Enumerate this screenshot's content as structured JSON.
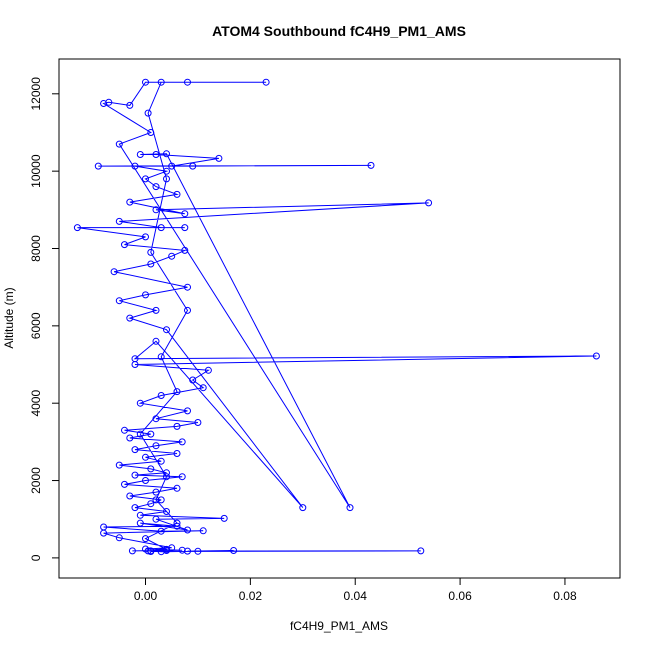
{
  "chart_data": {
    "type": "scatter",
    "title": "ATOM4 Southbound fC4H9_PM1_AMS",
    "xlabel": "fC4H9_PM1_AMS",
    "ylabel": "Altitude (m)",
    "xlim": [
      -0.0165,
      0.0905
    ],
    "ylim": [
      -520,
      12900
    ],
    "x_ticks": [
      0.0,
      0.02,
      0.04,
      0.06,
      0.08
    ],
    "x_tick_labels": [
      "0.00",
      "0.02",
      "0.04",
      "0.06",
      "0.08"
    ],
    "y_ticks": [
      0,
      2000,
      4000,
      6000,
      8000,
      10000,
      12000
    ],
    "y_tick_labels": [
      "0",
      "2000",
      "4000",
      "6000",
      "8000",
      "10000",
      "12000"
    ],
    "series_color": "#0000ff",
    "connected": true,
    "points": [
      [
        0.0005,
        180
      ],
      [
        0.003,
        160
      ],
      [
        0.01,
        170
      ],
      [
        0.0168,
        190
      ],
      [
        0.008,
        175
      ],
      [
        0.0525,
        180
      ],
      [
        0.001,
        165
      ],
      [
        0.004,
        190
      ],
      [
        -0.0025,
        180
      ],
      [
        0.007,
        200
      ],
      [
        0.0,
        230
      ],
      [
        0.005,
        260
      ],
      [
        -0.005,
        520
      ],
      [
        -0.008,
        640
      ],
      [
        0.011,
        700
      ],
      [
        0.003,
        690
      ],
      [
        -0.008,
        800
      ],
      [
        0.006,
        820
      ],
      [
        -0.001,
        900
      ],
      [
        0.008,
        720
      ],
      [
        0.002,
        1000
      ],
      [
        0.015,
        1020
      ],
      [
        -0.001,
        1100
      ],
      [
        0.004,
        1200
      ],
      [
        -0.002,
        1300
      ],
      [
        0.001,
        1400
      ],
      [
        0.003,
        1500
      ],
      [
        -0.003,
        1600
      ],
      [
        0.002,
        1700
      ],
      [
        0.006,
        1800
      ],
      [
        -0.004,
        1900
      ],
      [
        0.0,
        2000
      ],
      [
        0.007,
        2100
      ],
      [
        -0.002,
        2140
      ],
      [
        0.004,
        2200
      ],
      [
        0.001,
        2300
      ],
      [
        -0.005,
        2400
      ],
      [
        0.003,
        2500
      ],
      [
        0.0,
        2600
      ],
      [
        0.006,
        2700
      ],
      [
        -0.002,
        2800
      ],
      [
        0.002,
        2900
      ],
      [
        0.007,
        3000
      ],
      [
        -0.003,
        3100
      ],
      [
        0.001,
        3200
      ],
      [
        -0.004,
        3300
      ],
      [
        0.006,
        3400
      ],
      [
        0.01,
        3500
      ],
      [
        0.002,
        3600
      ],
      [
        0.008,
        3800
      ],
      [
        -0.001,
        4000
      ],
      [
        0.003,
        4200
      ],
      [
        0.011,
        4400
      ],
      [
        0.009,
        4600
      ],
      [
        0.012,
        4850
      ],
      [
        -0.002,
        5000
      ],
      [
        0.086,
        5220
      ],
      [
        -0.002,
        5150
      ],
      [
        0.002,
        5600
      ],
      [
        0.03,
        1300
      ],
      [
        0.004,
        5900
      ],
      [
        -0.003,
        6200
      ],
      [
        0.002,
        6400
      ],
      [
        -0.005,
        6650
      ],
      [
        0.0,
        6800
      ],
      [
        0.008,
        7000
      ],
      [
        -0.006,
        7400
      ],
      [
        0.001,
        7600
      ],
      [
        0.005,
        7800
      ],
      [
        0.0075,
        7950
      ],
      [
        -0.004,
        8100
      ],
      [
        0.0,
        8300
      ],
      [
        -0.013,
        8540
      ],
      [
        0.0075,
        8540
      ],
      [
        0.003,
        8540
      ],
      [
        -0.005,
        8700
      ],
      [
        0.054,
        9180
      ],
      [
        0.002,
        9000
      ],
      [
        0.0075,
        8900
      ],
      [
        -0.003,
        9200
      ],
      [
        0.006,
        9400
      ],
      [
        0.002,
        9600
      ],
      [
        0.0,
        9800
      ],
      [
        0.004,
        10000
      ],
      [
        -0.002,
        10130
      ],
      [
        0.009,
        10130
      ],
      [
        0.043,
        10150
      ],
      [
        -0.009,
        10130
      ],
      [
        0.005,
        10130
      ],
      [
        0.014,
        10330
      ],
      [
        0.002,
        10430
      ],
      [
        -0.001,
        10430
      ],
      [
        0.004,
        10450
      ],
      [
        0.039,
        1300
      ],
      [
        -0.005,
        10700
      ],
      [
        0.001,
        11000
      ],
      [
        -0.008,
        11750
      ],
      [
        -0.007,
        11780
      ],
      [
        -0.003,
        11700
      ],
      [
        0.0,
        12300
      ],
      [
        0.023,
        12300
      ],
      [
        0.008,
        12300
      ],
      [
        0.003,
        12300
      ],
      [
        0.0005,
        11500
      ],
      [
        0.004,
        9800
      ],
      [
        0.001,
        7900
      ],
      [
        0.008,
        6400
      ],
      [
        0.003,
        5200
      ],
      [
        0.006,
        4300
      ],
      [
        -0.001,
        3200
      ],
      [
        0.004,
        2100
      ],
      [
        0.002,
        1500
      ],
      [
        0.006,
        900
      ],
      [
        0.0,
        500
      ],
      [
        0.004,
        220
      ],
      [
        0.001,
        180
      ]
    ]
  }
}
